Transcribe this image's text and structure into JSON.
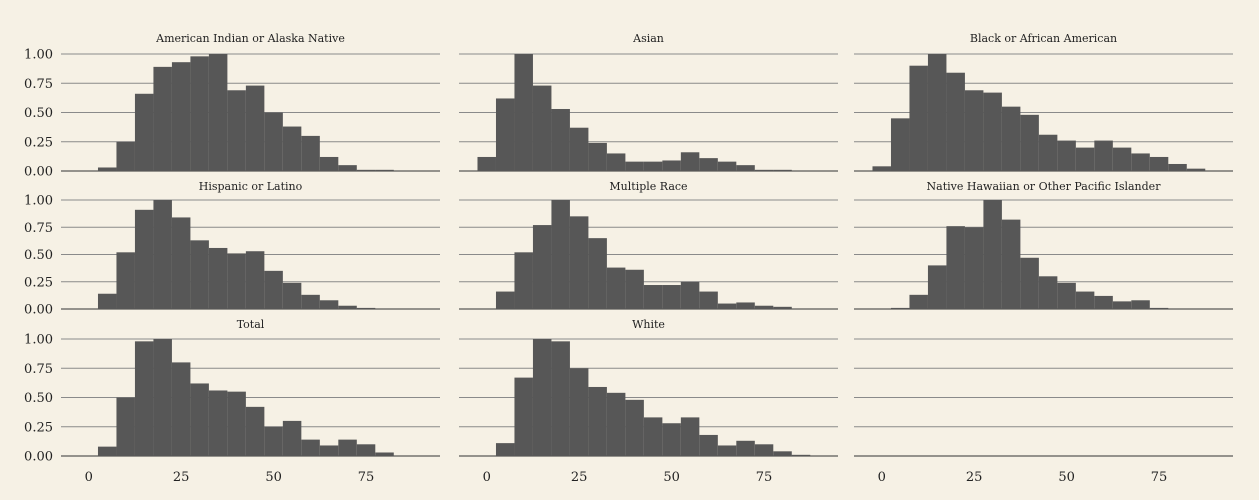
{
  "chart_data": {
    "type": "bar",
    "x_ticks": [
      0,
      25,
      50,
      75
    ],
    "y_ticks": [
      "0.00",
      "0.25",
      "0.50",
      "0.75",
      "1.00"
    ],
    "xlim": [
      -7.5,
      95
    ],
    "ylim": [
      0,
      1
    ],
    "bin_width": 5,
    "bin_starts": [
      -2.5,
      2.5,
      7.5,
      12.5,
      17.5,
      22.5,
      27.5,
      32.5,
      37.5,
      42.5,
      47.5,
      52.5,
      57.5,
      62.5,
      67.5,
      72.5,
      77.5,
      82.5
    ],
    "grid": true,
    "legend": "none",
    "colors": {
      "bar": "#575757",
      "background": "#f6f1e5"
    },
    "panels": [
      {
        "title": "American Indian or Alaska Native",
        "values": [
          0,
          0.03,
          0.25,
          0.66,
          0.89,
          0.93,
          0.98,
          1.0,
          0.69,
          0.73,
          0.5,
          0.38,
          0.3,
          0.12,
          0.05,
          0.01,
          0.01,
          0
        ]
      },
      {
        "title": "Asian",
        "values": [
          0.12,
          0.62,
          1.0,
          0.73,
          0.53,
          0.37,
          0.24,
          0.15,
          0.08,
          0.08,
          0.09,
          0.16,
          0.11,
          0.08,
          0.05,
          0.01,
          0.01,
          0
        ]
      },
      {
        "title": "Black or African American",
        "values": [
          0.04,
          0.45,
          0.9,
          1.0,
          0.84,
          0.69,
          0.67,
          0.55,
          0.48,
          0.31,
          0.26,
          0.2,
          0.26,
          0.2,
          0.15,
          0.12,
          0.06,
          0.02
        ]
      },
      {
        "title": "Hispanic or Latino",
        "values": [
          0,
          0.14,
          0.52,
          0.91,
          1.0,
          0.84,
          0.63,
          0.56,
          0.51,
          0.53,
          0.35,
          0.24,
          0.13,
          0.08,
          0.03,
          0.01,
          0,
          0
        ]
      },
      {
        "title": "Multiple Race",
        "values": [
          0,
          0.16,
          0.52,
          0.77,
          1.0,
          0.85,
          0.65,
          0.38,
          0.36,
          0.22,
          0.22,
          0.25,
          0.16,
          0.05,
          0.06,
          0.03,
          0.02,
          0
        ]
      },
      {
        "title": "Native Hawaiian or Other Pacific Islander",
        "values": [
          0,
          0.01,
          0.13,
          0.4,
          0.76,
          0.75,
          1.0,
          0.82,
          0.47,
          0.3,
          0.24,
          0.16,
          0.12,
          0.07,
          0.08,
          0.01,
          0,
          0
        ]
      },
      {
        "title": "Total",
        "values": [
          0,
          0.08,
          0.5,
          0.98,
          1.0,
          0.8,
          0.62,
          0.56,
          0.55,
          0.42,
          0.25,
          0.3,
          0.14,
          0.09,
          0.14,
          0.1,
          0.03,
          0
        ]
      },
      {
        "title": "White",
        "values": [
          0,
          0.11,
          0.67,
          1.0,
          0.98,
          0.75,
          0.59,
          0.54,
          0.48,
          0.33,
          0.28,
          0.33,
          0.18,
          0.09,
          0.13,
          0.1,
          0.04,
          0.01
        ]
      },
      {
        "title": "",
        "values": []
      }
    ]
  }
}
